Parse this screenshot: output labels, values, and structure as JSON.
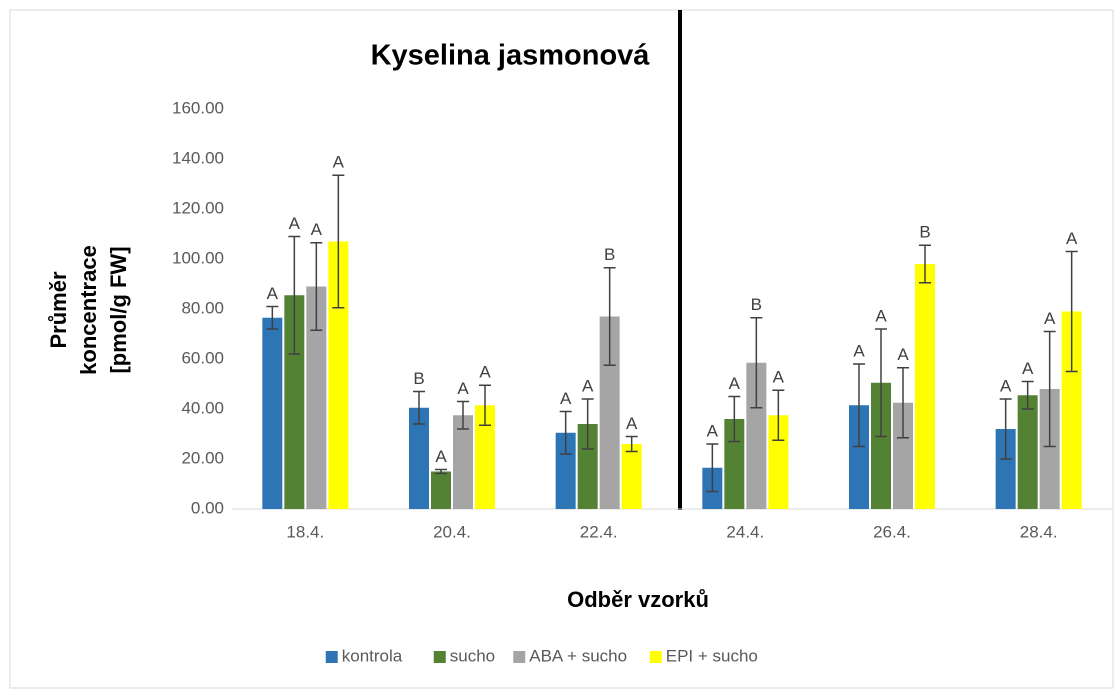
{
  "chart_data": {
    "type": "bar",
    "title": "Kyselina jasmonová",
    "y_label_lines": [
      "Průměr",
      "koncentrace",
      "[pmol/g FW]"
    ],
    "x_label": "Odběr vzorků",
    "categories": [
      "18.4.",
      "20.4.",
      "22.4.",
      "24.4.",
      "26.4.",
      "28.4."
    ],
    "series": [
      {
        "name": "kontrola",
        "color": "#2e75b6",
        "values": [
          76.5,
          40.5,
          30.5,
          16.5,
          41.5,
          32
        ],
        "errors": [
          4.5,
          6.5,
          8.5,
          9.5,
          16.5,
          12
        ],
        "letters": [
          "A",
          "B",
          "A",
          "A",
          "A",
          "A"
        ]
      },
      {
        "name": "sucho",
        "color": "#548235",
        "values": [
          85.5,
          15,
          34,
          36,
          50.5,
          45.5
        ],
        "errors": [
          23.5,
          0.8,
          10,
          9,
          21.5,
          5.5
        ],
        "letters": [
          "A",
          "A",
          "A",
          "A",
          "A",
          "A"
        ]
      },
      {
        "name": "ABA + sucho",
        "color": "#a5a5a5",
        "values": [
          89,
          37.5,
          77,
          58.5,
          42.5,
          48
        ],
        "errors": [
          17.5,
          5.5,
          19.5,
          18,
          14,
          23
        ],
        "letters": [
          "A",
          "A",
          "B",
          "B",
          "A",
          "A"
        ]
      },
      {
        "name": "EPI + sucho",
        "color": "#ffff00",
        "values": [
          107,
          41.5,
          26,
          37.5,
          98,
          79
        ],
        "errors": [
          26.5,
          8,
          3,
          10,
          7.5,
          24
        ],
        "letters": [
          "A",
          "A",
          "A",
          "A",
          "B",
          "A"
        ]
      }
    ],
    "ylim": [
      0,
      160
    ],
    "yticks": [
      {
        "value": 0,
        "label": "0.00"
      },
      {
        "value": 20,
        "label": "20.00"
      },
      {
        "value": 40,
        "label": "40.00"
      },
      {
        "value": 60,
        "label": "60.00"
      },
      {
        "value": 80,
        "label": "80.00"
      },
      {
        "value": 100,
        "label": "100.00"
      },
      {
        "value": 120,
        "label": "120.00"
      },
      {
        "value": 140,
        "label": "140.00"
      },
      {
        "value": 160,
        "label": "160.00"
      }
    ],
    "legend": "bottom"
  }
}
